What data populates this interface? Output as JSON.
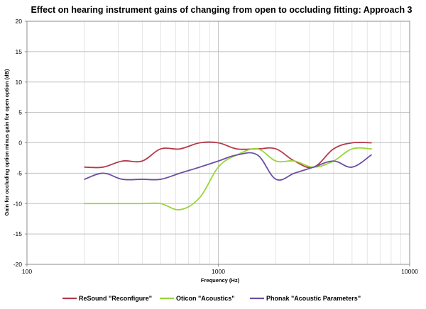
{
  "chart_data": {
    "type": "line",
    "title": "Effect on hearing instrument gains of changing from open to occluding fitting: Approach 3",
    "xlabel": "Frequency (Hz)",
    "ylabel": "Gain for occluding option minus gain for open option (dB)",
    "x_scale": "log",
    "xlim": [
      100,
      10000
    ],
    "ylim": [
      -20,
      20
    ],
    "x_ticks": [
      100,
      1000,
      10000
    ],
    "x_tick_labels": [
      "100",
      "1000",
      "10000"
    ],
    "y_ticks": [
      20,
      15,
      10,
      5,
      0,
      -5,
      -10,
      -15,
      -20
    ],
    "y_tick_labels": [
      "20",
      "15",
      "10",
      "5",
      "0",
      "-5",
      "-10",
      "-15",
      "-20"
    ],
    "grid": "on",
    "legend_position": "bottom",
    "series": [
      {
        "name": "ReSound \"Reconfigure\"",
        "color": "#b5394a",
        "points": [
          [
            200,
            -4
          ],
          [
            250,
            -4
          ],
          [
            315,
            -3
          ],
          [
            400,
            -3
          ],
          [
            500,
            -1
          ],
          [
            630,
            -1
          ],
          [
            800,
            0
          ],
          [
            1000,
            0
          ],
          [
            1250,
            -1
          ],
          [
            1600,
            -1
          ],
          [
            2000,
            -1
          ],
          [
            2500,
            -3
          ],
          [
            3150,
            -4
          ],
          [
            4000,
            -1
          ],
          [
            5000,
            0
          ],
          [
            6300,
            0
          ]
        ]
      },
      {
        "name": "Oticon \"Acoustics\"",
        "color": "#99d53a",
        "points": [
          [
            200,
            -10
          ],
          [
            250,
            -10
          ],
          [
            315,
            -10
          ],
          [
            400,
            -10
          ],
          [
            500,
            -10
          ],
          [
            630,
            -11
          ],
          [
            800,
            -9
          ],
          [
            1000,
            -4
          ],
          [
            1250,
            -2
          ],
          [
            1600,
            -1
          ],
          [
            2000,
            -3
          ],
          [
            2500,
            -3
          ],
          [
            3150,
            -4
          ],
          [
            4000,
            -3
          ],
          [
            5000,
            -1
          ],
          [
            6300,
            -1
          ]
        ]
      },
      {
        "name": "Phonak \"Acoustic Parameters\"",
        "color": "#6a4fa3",
        "points": [
          [
            200,
            -6
          ],
          [
            250,
            -5
          ],
          [
            315,
            -6
          ],
          [
            400,
            -6
          ],
          [
            500,
            -6
          ],
          [
            630,
            -5
          ],
          [
            800,
            -4
          ],
          [
            1000,
            -3
          ],
          [
            1250,
            -2
          ],
          [
            1600,
            -2
          ],
          [
            2000,
            -6
          ],
          [
            2500,
            -5
          ],
          [
            3150,
            -4
          ],
          [
            4000,
            -3
          ],
          [
            5000,
            -4
          ],
          [
            6300,
            -2
          ]
        ]
      }
    ]
  }
}
